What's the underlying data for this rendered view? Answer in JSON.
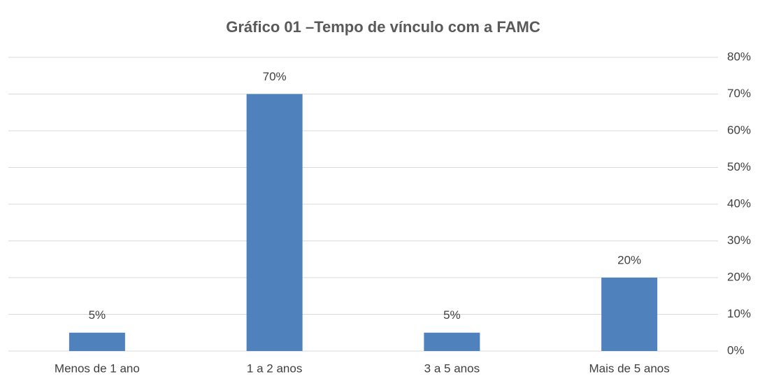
{
  "chart_data": {
    "type": "bar",
    "title": "Gráfico 01 –Tempo de vínculo com a FAMC",
    "categories": [
      "Menos de 1 ano",
      "1 a 2 anos",
      "3 a 5 anos",
      "Mais de 5 anos"
    ],
    "values": [
      5,
      70,
      5,
      20
    ],
    "value_labels": [
      "5%",
      "70%",
      "5%",
      "20%"
    ],
    "color": "#4f81bd",
    "ylim": [
      0,
      80
    ],
    "yticks": [
      {
        "value": 0,
        "label": "0%"
      },
      {
        "value": 10,
        "label": "10%"
      },
      {
        "value": 20,
        "label": "20%"
      },
      {
        "value": 30,
        "label": "30%"
      },
      {
        "value": 40,
        "label": "40%"
      },
      {
        "value": 50,
        "label": "50%"
      },
      {
        "value": 60,
        "label": "60%"
      },
      {
        "value": 70,
        "label": "70%"
      },
      {
        "value": 80,
        "label": "80%"
      }
    ],
    "grid": true
  }
}
